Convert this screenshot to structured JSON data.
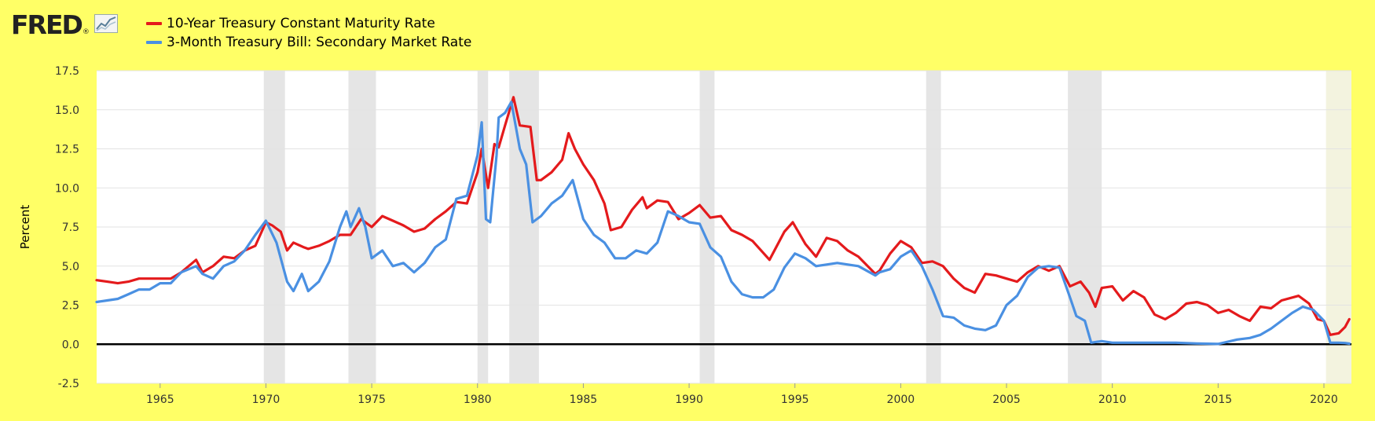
{
  "logo": {
    "text": "FRED",
    "reg": "®"
  },
  "legend": [
    {
      "label": "10-Year Treasury Constant Maturity Rate",
      "color": "#e41a1c"
    },
    {
      "label": "3-Month Treasury Bill: Secondary Market Rate",
      "color": "#4a90e2"
    }
  ],
  "chart_data": {
    "type": "line",
    "title": "",
    "xlabel": "",
    "ylabel": "Percent",
    "xlim": [
      1962.0,
      2021.3
    ],
    "ylim": [
      -2.5,
      17.5
    ],
    "yticks": [
      -2.5,
      0.0,
      2.5,
      5.0,
      7.5,
      10.0,
      12.5,
      15.0,
      17.5
    ],
    "ytick_labels": [
      "-2.5",
      "0.0",
      "2.5",
      "5.0",
      "7.5",
      "10.0",
      "12.5",
      "15.0",
      "17.5"
    ],
    "xticks": [
      1965,
      1970,
      1975,
      1980,
      1985,
      1990,
      1995,
      2000,
      2005,
      2010,
      2015,
      2020
    ],
    "xtick_labels": [
      "1965",
      "1970",
      "1975",
      "1980",
      "1985",
      "1990",
      "1995",
      "2000",
      "2005",
      "2010",
      "2015",
      "2020"
    ],
    "grid": true,
    "recessions": [
      [
        1969.9,
        1970.9
      ],
      [
        1973.9,
        1975.2
      ],
      [
        1980.0,
        1980.5
      ],
      [
        1981.5,
        1982.9
      ],
      [
        1990.5,
        1991.2
      ],
      [
        2001.2,
        2001.9
      ],
      [
        2007.9,
        2009.5
      ],
      [
        2020.1,
        2021.3
      ]
    ],
    "series": [
      {
        "name": "10-Year Treasury Constant Maturity Rate",
        "color": "#e41a1c",
        "x": [
          1962.0,
          1962.5,
          1963.0,
          1963.5,
          1964.0,
          1964.5,
          1965.0,
          1965.5,
          1966.0,
          1966.7,
          1967.0,
          1967.5,
          1968.0,
          1968.5,
          1969.0,
          1969.5,
          1970.0,
          1970.3,
          1970.7,
          1971.0,
          1971.3,
          1971.8,
          1972.0,
          1972.5,
          1973.0,
          1973.5,
          1974.0,
          1974.5,
          1975.0,
          1975.5,
          1976.0,
          1976.5,
          1977.0,
          1977.5,
          1978.0,
          1978.5,
          1979.0,
          1979.5,
          1980.0,
          1980.2,
          1980.5,
          1980.8,
          1981.0,
          1981.3,
          1981.7,
          1982.0,
          1982.5,
          1982.8,
          1983.0,
          1983.5,
          1984.0,
          1984.3,
          1984.6,
          1985.0,
          1985.5,
          1986.0,
          1986.3,
          1986.8,
          1987.3,
          1987.8,
          1988.0,
          1988.5,
          1989.0,
          1989.5,
          1990.0,
          1990.5,
          1991.0,
          1991.5,
          1992.0,
          1992.5,
          1993.0,
          1993.8,
          1994.5,
          1994.9,
          1995.5,
          1996.0,
          1996.5,
          1997.0,
          1997.5,
          1998.0,
          1998.8,
          1999.0,
          1999.5,
          2000.0,
          2000.5,
          2001.0,
          2001.5,
          2002.0,
          2002.5,
          2003.0,
          2003.5,
          2004.0,
          2004.5,
          2005.0,
          2005.5,
          2006.0,
          2006.5,
          2007.0,
          2007.5,
          2008.0,
          2008.5,
          2008.9,
          2009.2,
          2009.5,
          2010.0,
          2010.5,
          2011.0,
          2011.5,
          2012.0,
          2012.5,
          2013.0,
          2013.5,
          2014.0,
          2014.5,
          2015.0,
          2015.5,
          2016.0,
          2016.5,
          2017.0,
          2017.5,
          2018.0,
          2018.8,
          2019.3,
          2019.7,
          2020.0,
          2020.3,
          2020.7,
          2021.0,
          2021.2
        ],
        "values": [
          4.1,
          4.0,
          3.9,
          4.0,
          4.2,
          4.2,
          4.2,
          4.2,
          4.6,
          5.4,
          4.6,
          5.0,
          5.6,
          5.5,
          6.0,
          6.3,
          7.8,
          7.6,
          7.2,
          6.0,
          6.5,
          6.2,
          6.1,
          6.3,
          6.6,
          7.0,
          7.0,
          8.0,
          7.5,
          8.2,
          7.9,
          7.6,
          7.2,
          7.4,
          8.0,
          8.5,
          9.1,
          9.0,
          11.0,
          12.5,
          10.0,
          12.8,
          12.6,
          14.0,
          15.8,
          14.0,
          13.9,
          10.5,
          10.5,
          11.0,
          11.8,
          13.5,
          12.5,
          11.5,
          10.5,
          9.0,
          7.3,
          7.5,
          8.6,
          9.4,
          8.7,
          9.2,
          9.1,
          8.0,
          8.4,
          8.9,
          8.1,
          8.2,
          7.3,
          7.0,
          6.6,
          5.4,
          7.2,
          7.8,
          6.4,
          5.6,
          6.8,
          6.6,
          6.0,
          5.6,
          4.5,
          4.7,
          5.8,
          6.6,
          6.2,
          5.2,
          5.3,
          5.0,
          4.2,
          3.6,
          3.3,
          4.5,
          4.4,
          4.2,
          4.0,
          4.6,
          5.0,
          4.7,
          5.0,
          3.7,
          4.0,
          3.3,
          2.4,
          3.6,
          3.7,
          2.8,
          3.4,
          3.0,
          1.9,
          1.6,
          2.0,
          2.6,
          2.7,
          2.5,
          2.0,
          2.2,
          1.8,
          1.5,
          2.4,
          2.3,
          2.8,
          3.1,
          2.6,
          1.6,
          1.5,
          0.6,
          0.7,
          1.1,
          1.6
        ]
      },
      {
        "name": "3-Month Treasury Bill: Secondary Market Rate",
        "color": "#4a90e2",
        "x": [
          1962.0,
          1962.5,
          1963.0,
          1963.5,
          1964.0,
          1964.5,
          1965.0,
          1965.5,
          1966.0,
          1966.7,
          1967.0,
          1967.5,
          1968.0,
          1968.5,
          1969.0,
          1969.5,
          1970.0,
          1970.5,
          1971.0,
          1971.3,
          1971.7,
          1972.0,
          1972.5,
          1973.0,
          1973.5,
          1973.8,
          1974.0,
          1974.4,
          1974.7,
          1975.0,
          1975.5,
          1976.0,
          1976.5,
          1977.0,
          1977.5,
          1978.0,
          1978.5,
          1979.0,
          1979.5,
          1980.0,
          1980.2,
          1980.4,
          1980.6,
          1980.9,
          1981.0,
          1981.3,
          1981.6,
          1982.0,
          1982.3,
          1982.6,
          1983.0,
          1983.5,
          1984.0,
          1984.5,
          1985.0,
          1985.5,
          1986.0,
          1986.5,
          1987.0,
          1987.5,
          1988.0,
          1988.5,
          1989.0,
          1989.5,
          1990.0,
          1990.5,
          1991.0,
          1991.5,
          1992.0,
          1992.5,
          1993.0,
          1993.5,
          1994.0,
          1994.5,
          1995.0,
          1995.5,
          1996.0,
          1997.0,
          1998.0,
          1998.8,
          1999.0,
          1999.5,
          2000.0,
          2000.5,
          2001.0,
          2001.5,
          2002.0,
          2002.5,
          2003.0,
          2003.5,
          2004.0,
          2004.5,
          2005.0,
          2005.5,
          2006.0,
          2006.5,
          2007.0,
          2007.5,
          2008.0,
          2008.3,
          2008.7,
          2009.0,
          2009.5,
          2010.0,
          2011.0,
          2012.0,
          2013.0,
          2014.0,
          2015.0,
          2015.9,
          2016.5,
          2017.0,
          2017.5,
          2018.0,
          2018.5,
          2019.0,
          2019.5,
          2020.0,
          2020.3,
          2020.7,
          2021.0,
          2021.2
        ],
        "values": [
          2.7,
          2.8,
          2.9,
          3.2,
          3.5,
          3.5,
          3.9,
          3.9,
          4.6,
          5.0,
          4.5,
          4.2,
          5.0,
          5.3,
          6.0,
          7.0,
          7.9,
          6.5,
          4.0,
          3.4,
          4.5,
          3.4,
          4.0,
          5.3,
          7.5,
          8.5,
          7.5,
          8.7,
          7.5,
          5.5,
          6.0,
          5.0,
          5.2,
          4.6,
          5.2,
          6.2,
          6.7,
          9.3,
          9.5,
          12.1,
          14.2,
          8.0,
          7.8,
          12.1,
          14.5,
          14.8,
          15.5,
          12.5,
          11.5,
          7.8,
          8.2,
          9.0,
          9.5,
          10.5,
          8.0,
          7.0,
          6.5,
          5.5,
          5.5,
          6.0,
          5.8,
          6.5,
          8.5,
          8.2,
          7.8,
          7.7,
          6.2,
          5.6,
          4.0,
          3.2,
          3.0,
          3.0,
          3.5,
          4.9,
          5.8,
          5.5,
          5.0,
          5.2,
          5.0,
          4.4,
          4.6,
          4.8,
          5.6,
          6.0,
          5.0,
          3.5,
          1.8,
          1.7,
          1.2,
          1.0,
          0.9,
          1.2,
          2.5,
          3.1,
          4.3,
          4.9,
          5.0,
          4.9,
          3.0,
          1.8,
          1.5,
          0.1,
          0.2,
          0.1,
          0.1,
          0.1,
          0.1,
          0.05,
          0.02,
          0.3,
          0.4,
          0.6,
          1.0,
          1.5,
          2.0,
          2.4,
          2.2,
          1.5,
          0.1,
          0.1,
          0.08,
          0.04
        ]
      }
    ]
  }
}
